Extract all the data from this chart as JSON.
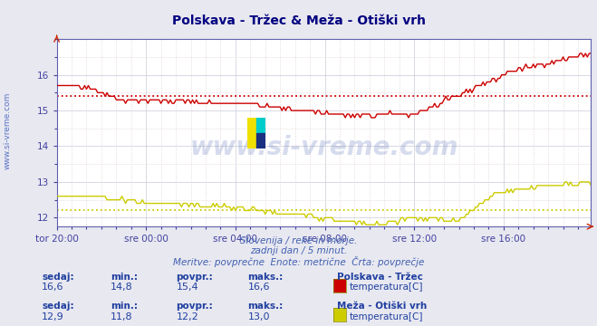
{
  "title": "Polskava - Tržec & Meža - Otiški vrh",
  "title_color": "#000080",
  "bg_color": "#e8e8f0",
  "plot_bg_color": "#ffffff",
  "grid_color_major": "#c8c8d8",
  "grid_color_minor": "#e0d0d0",
  "axis_color": "#4040a0",
  "border_color": "#6060b0",
  "ylim": [
    11.75,
    17.0
  ],
  "yticks": [
    12,
    13,
    14,
    15,
    16
  ],
  "n_points": 288,
  "x_tick_labels": [
    "tor 20:00",
    "sre 00:00",
    "sre 04:00",
    "sre 08:00",
    "sre 12:00",
    "sre 16:00"
  ],
  "x_tick_positions": [
    0,
    48,
    96,
    144,
    192,
    240
  ],
  "red_line_color": "#cc0000",
  "yellow_line_color": "#cccc00",
  "red_avg": 15.4,
  "yellow_avg": 12.2,
  "watermark": "www.si-vreme.com",
  "watermark_color": "#2040a0",
  "watermark_alpha": 0.18,
  "side_text": "www.si-vreme.com",
  "side_text_color": "#4060c0",
  "subtitle1": "Slovenija / reke in morje.",
  "subtitle2": "zadnji dan / 5 minut.",
  "subtitle3": "Meritve: povprečne  Enote: metrične  Črta: povprečje",
  "subtitle_color": "#4060b0",
  "legend1_title": "Polskava - Tržec",
  "legend1_label": "temperatura[C]",
  "legend1_color": "#cc0000",
  "legend2_title": "Meža - Otiški vrh",
  "legend2_label": "temperatura[C]",
  "legend2_color": "#cccc00",
  "stats1": {
    "sedaj": "16,6",
    "min": "14,8",
    "povpr": "15,4",
    "maks": "16,6"
  },
  "stats2": {
    "sedaj": "12,9",
    "min": "11,8",
    "povpr": "12,2",
    "maks": "13,0"
  },
  "stats_label_color": "#2040a0",
  "logo_yellow": "#f0e000",
  "logo_cyan": "#00cccc",
  "logo_blue": "#1a3080"
}
